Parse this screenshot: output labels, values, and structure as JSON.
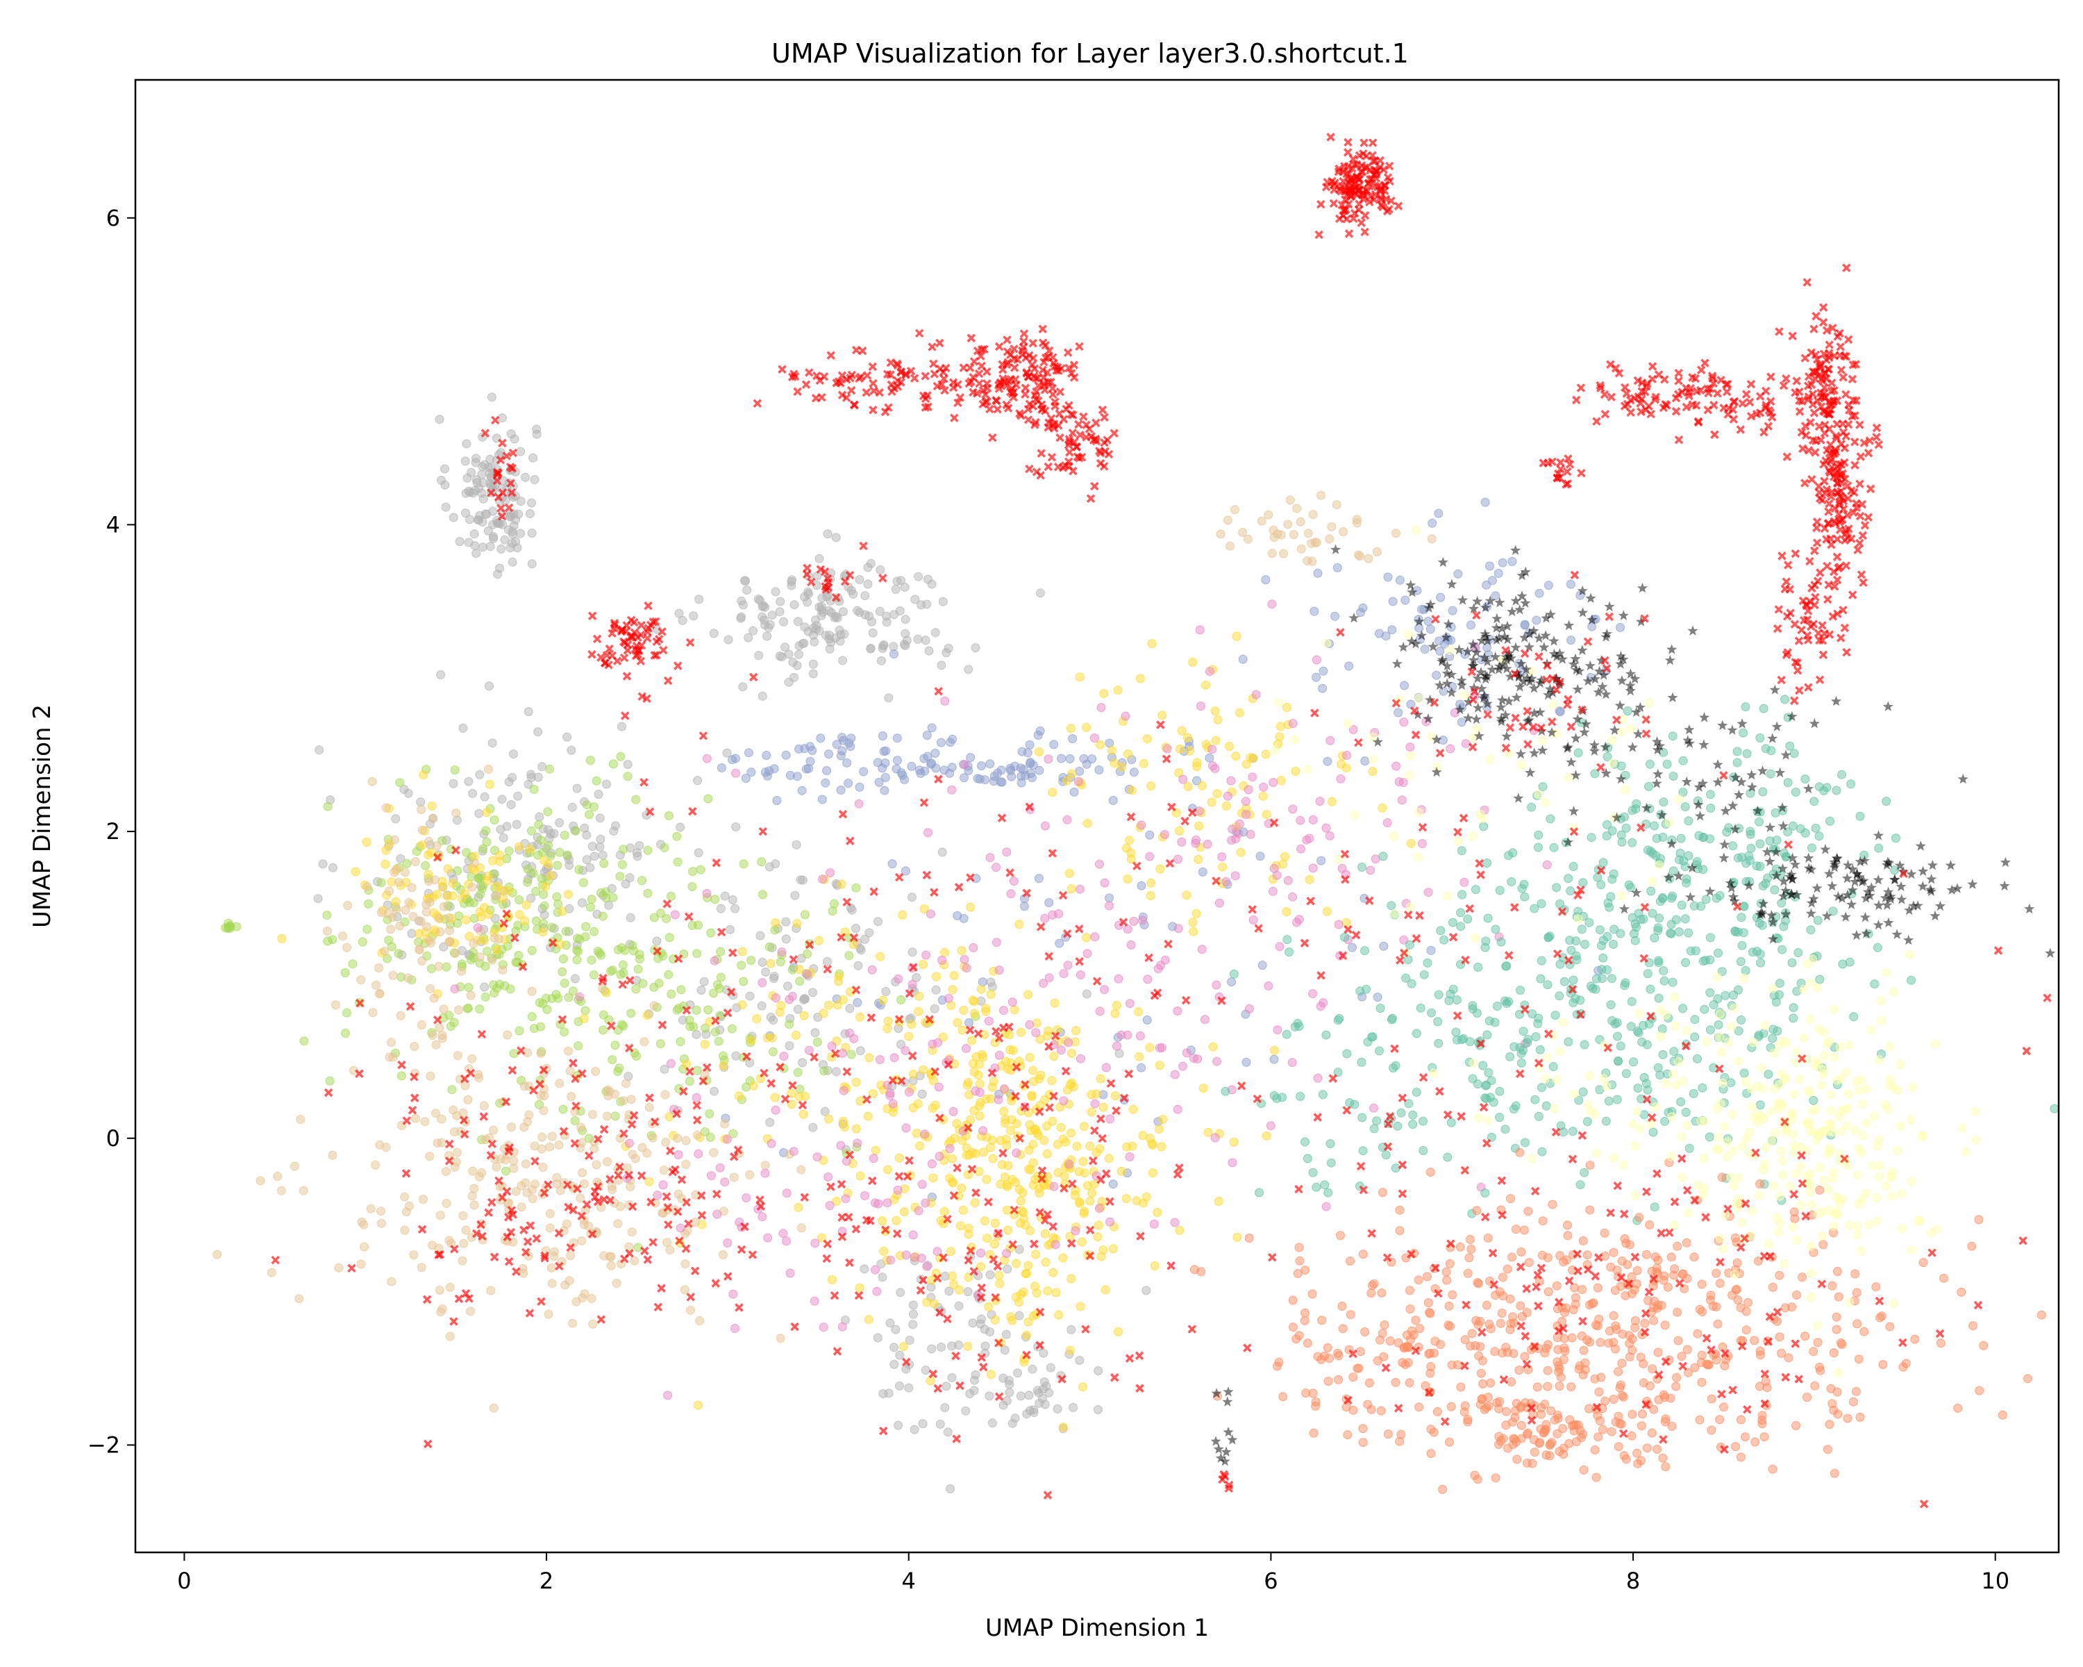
{
  "chart_data": {
    "type": "scatter",
    "title": "UMAP Visualization for Layer layer3.0.shortcut.1",
    "xlabel": "UMAP Dimension 1",
    "ylabel": "UMAP Dimension 2",
    "xlim": [
      -0.27,
      10.35
    ],
    "ylim": [
      -2.7,
      6.9
    ],
    "xticks": [
      0,
      2,
      4,
      6,
      8,
      10
    ],
    "yticks": [
      -2,
      0,
      2,
      4,
      6
    ],
    "grid": false,
    "legend": null,
    "marker_alpha": 0.5,
    "series": [
      {
        "color": "#b3b3b3",
        "marker": "circle",
        "clusters": [
          {
            "cx": 1.7,
            "cy": 4.2,
            "sx": 0.12,
            "sy": 0.25,
            "n": 120
          },
          {
            "cx": 3.6,
            "cy": 3.4,
            "sx": 0.35,
            "sy": 0.2,
            "n": 160
          },
          {
            "cx": 1.9,
            "cy": 1.9,
            "sx": 0.45,
            "sy": 0.4,
            "n": 150
          },
          {
            "cx": 3.4,
            "cy": 1.0,
            "sx": 0.6,
            "sy": 0.5,
            "n": 120
          },
          {
            "cx": 4.3,
            "cy": -1.3,
            "sx": 0.35,
            "sy": 0.3,
            "n": 90
          },
          {
            "cx": 4.7,
            "cy": -1.75,
            "sx": 0.1,
            "sy": 0.08,
            "n": 20
          }
        ]
      },
      {
        "color": "#8da0cb",
        "marker": "circle",
        "clusters": [
          {
            "cx": 4.2,
            "cy": 2.45,
            "sx": 0.6,
            "sy": 0.1,
            "n": 130
          },
          {
            "cx": 7.0,
            "cy": 3.3,
            "sx": 0.5,
            "sy": 0.3,
            "n": 90
          },
          {
            "cx": 5.2,
            "cy": 1.2,
            "sx": 1.0,
            "sy": 0.8,
            "n": 70
          }
        ]
      },
      {
        "color": "#a6d854",
        "marker": "circle",
        "clusters": [
          {
            "cx": 1.9,
            "cy": 1.4,
            "sx": 0.5,
            "sy": 0.45,
            "n": 260
          },
          {
            "cx": 2.8,
            "cy": 0.8,
            "sx": 0.6,
            "sy": 0.5,
            "n": 120
          },
          {
            "cx": 0.25,
            "cy": 1.37,
            "sx": 0.02,
            "sy": 0.01,
            "n": 8
          }
        ]
      },
      {
        "color": "#ffd92f",
        "marker": "circle",
        "clusters": [
          {
            "cx": 4.6,
            "cy": -0.2,
            "sx": 0.45,
            "sy": 0.55,
            "n": 360
          },
          {
            "cx": 1.5,
            "cy": 1.6,
            "sx": 0.3,
            "sy": 0.3,
            "n": 90
          },
          {
            "cx": 5.6,
            "cy": 2.2,
            "sx": 0.5,
            "sy": 0.5,
            "n": 110
          },
          {
            "cx": 3.7,
            "cy": 0.6,
            "sx": 0.6,
            "sy": 0.5,
            "n": 120
          }
        ]
      },
      {
        "color": "#e5c494",
        "marker": "circle",
        "clusters": [
          {
            "cx": 2.0,
            "cy": -0.3,
            "sx": 0.6,
            "sy": 0.45,
            "n": 280
          },
          {
            "cx": 1.3,
            "cy": 1.3,
            "sx": 0.2,
            "sy": 0.4,
            "n": 90
          },
          {
            "cx": 6.1,
            "cy": 3.95,
            "sx": 0.25,
            "sy": 0.1,
            "n": 40
          }
        ]
      },
      {
        "color": "#e78ac3",
        "marker": "circle",
        "clusters": [
          {
            "cx": 4.8,
            "cy": 0.9,
            "sx": 1.0,
            "sy": 0.8,
            "n": 180
          },
          {
            "cx": 6.0,
            "cy": 2.2,
            "sx": 0.6,
            "sy": 0.6,
            "n": 90
          },
          {
            "cx": 3.5,
            "cy": -0.5,
            "sx": 0.5,
            "sy": 0.4,
            "n": 60
          }
        ]
      },
      {
        "color": "#66c2a5",
        "marker": "circle",
        "clusters": [
          {
            "cx": 7.9,
            "cy": 1.0,
            "sx": 0.65,
            "sy": 0.6,
            "n": 420
          },
          {
            "cx": 8.5,
            "cy": 2.0,
            "sx": 0.4,
            "sy": 0.35,
            "n": 140
          },
          {
            "cx": 6.5,
            "cy": 0.3,
            "sx": 0.4,
            "sy": 0.4,
            "n": 60
          }
        ]
      },
      {
        "color": "#fc8d62",
        "marker": "circle",
        "clusters": [
          {
            "cx": 8.0,
            "cy": -1.2,
            "sx": 0.85,
            "sy": 0.4,
            "n": 460
          },
          {
            "cx": 7.6,
            "cy": -1.9,
            "sx": 0.3,
            "sy": 0.12,
            "n": 90
          },
          {
            "cx": 6.6,
            "cy": -1.4,
            "sx": 0.35,
            "sy": 0.25,
            "n": 80
          }
        ]
      },
      {
        "color": "#ffffb3",
        "marker": "circle",
        "clusters": [
          {
            "cx": 9.0,
            "cy": 0.0,
            "sx": 0.35,
            "sy": 0.45,
            "n": 260
          },
          {
            "cx": 8.0,
            "cy": 0.3,
            "sx": 0.5,
            "sy": 0.3,
            "n": 60
          },
          {
            "cx": 7.2,
            "cy": 2.4,
            "sx": 0.6,
            "sy": 0.5,
            "n": 60
          }
        ]
      },
      {
        "color": "#000000",
        "marker": "star",
        "clusters": [
          {
            "cx": 7.4,
            "cy": 3.1,
            "sx": 0.35,
            "sy": 0.3,
            "n": 200
          },
          {
            "cx": 9.2,
            "cy": 1.6,
            "sx": 0.35,
            "sy": 0.15,
            "n": 110
          },
          {
            "cx": 8.4,
            "cy": 2.3,
            "sx": 0.5,
            "sy": 0.35,
            "n": 70
          },
          {
            "cx": 5.75,
            "cy": -2.0,
            "sx": 0.04,
            "sy": 0.25,
            "n": 10
          }
        ]
      },
      {
        "color": "#ff0000",
        "marker": "x",
        "clusters": [
          {
            "cx": 6.5,
            "cy": 6.2,
            "sx": 0.09,
            "sy": 0.13,
            "n": 130
          },
          {
            "cx": 4.0,
            "cy": 4.95,
            "sx": 0.35,
            "sy": 0.1,
            "n": 100
          },
          {
            "cx": 4.65,
            "cy": 4.95,
            "sx": 0.15,
            "sy": 0.15,
            "n": 110
          },
          {
            "cx": 4.9,
            "cy": 4.5,
            "sx": 0.12,
            "sy": 0.14,
            "n": 60
          },
          {
            "cx": 8.35,
            "cy": 4.85,
            "sx": 0.3,
            "sy": 0.1,
            "n": 110
          },
          {
            "cx": 9.05,
            "cy": 4.9,
            "sx": 0.1,
            "sy": 0.25,
            "n": 100
          },
          {
            "cx": 9.15,
            "cy": 4.2,
            "sx": 0.08,
            "sy": 0.35,
            "n": 120
          },
          {
            "cx": 8.95,
            "cy": 3.4,
            "sx": 0.1,
            "sy": 0.25,
            "n": 60
          },
          {
            "cx": 2.45,
            "cy": 3.2,
            "sx": 0.12,
            "sy": 0.12,
            "n": 60
          },
          {
            "cx": 1.75,
            "cy": 4.35,
            "sx": 0.05,
            "sy": 0.15,
            "n": 20
          },
          {
            "cx": 7.6,
            "cy": 4.35,
            "sx": 0.05,
            "sy": 0.05,
            "n": 15
          },
          {
            "cx": 3.6,
            "cy": 3.65,
            "sx": 0.1,
            "sy": 0.06,
            "n": 15
          },
          {
            "cx": 2.1,
            "cy": -0.4,
            "sx": 0.6,
            "sy": 0.5,
            "n": 140
          },
          {
            "cx": 4.3,
            "cy": -0.8,
            "sx": 0.6,
            "sy": 0.6,
            "n": 90
          },
          {
            "cx": 6.5,
            "cy": 1.0,
            "sx": 1.6,
            "sy": 1.0,
            "n": 140
          },
          {
            "cx": 8.0,
            "cy": -1.0,
            "sx": 0.9,
            "sy": 0.5,
            "n": 110
          },
          {
            "cx": 3.5,
            "cy": 1.0,
            "sx": 1.0,
            "sy": 0.8,
            "n": 90
          },
          {
            "cx": 7.4,
            "cy": 3.0,
            "sx": 0.4,
            "sy": 0.3,
            "n": 40
          },
          {
            "cx": 5.75,
            "cy": -2.25,
            "sx": 0.015,
            "sy": 0.04,
            "n": 5
          }
        ]
      }
    ]
  }
}
